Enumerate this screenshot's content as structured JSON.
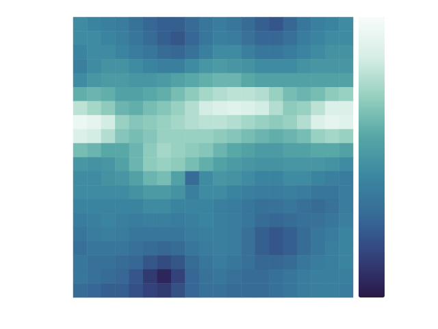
{
  "chart_data": {
    "type": "heatmap",
    "tick_labels": false,
    "clim": [
      0,
      1
    ],
    "cells": [
      [
        0.45,
        0.42,
        0.4,
        0.38,
        0.33,
        0.28,
        0.25,
        0.25,
        0.3,
        0.35,
        0.38,
        0.35,
        0.3,
        0.25,
        0.22,
        0.28,
        0.35,
        0.4,
        0.42,
        0.45
      ],
      [
        0.45,
        0.45,
        0.42,
        0.4,
        0.35,
        0.3,
        0.25,
        0.22,
        0.28,
        0.35,
        0.4,
        0.38,
        0.33,
        0.28,
        0.28,
        0.32,
        0.38,
        0.42,
        0.45,
        0.45
      ],
      [
        0.42,
        0.45,
        0.45,
        0.42,
        0.38,
        0.35,
        0.3,
        0.28,
        0.33,
        0.4,
        0.45,
        0.45,
        0.4,
        0.35,
        0.35,
        0.38,
        0.42,
        0.45,
        0.48,
        0.48
      ],
      [
        0.4,
        0.45,
        0.48,
        0.48,
        0.45,
        0.42,
        0.4,
        0.4,
        0.45,
        0.5,
        0.52,
        0.5,
        0.48,
        0.45,
        0.45,
        0.45,
        0.48,
        0.5,
        0.5,
        0.5
      ],
      [
        0.45,
        0.5,
        0.52,
        0.52,
        0.5,
        0.5,
        0.52,
        0.55,
        0.58,
        0.6,
        0.62,
        0.62,
        0.58,
        0.55,
        0.55,
        0.55,
        0.55,
        0.55,
        0.55,
        0.55
      ],
      [
        0.6,
        0.62,
        0.6,
        0.55,
        0.55,
        0.58,
        0.6,
        0.65,
        0.7,
        0.75,
        0.78,
        0.8,
        0.8,
        0.78,
        0.72,
        0.65,
        0.62,
        0.65,
        0.7,
        0.72
      ],
      [
        0.8,
        0.75,
        0.7,
        0.62,
        0.6,
        0.65,
        0.68,
        0.72,
        0.78,
        0.85,
        0.88,
        0.9,
        0.88,
        0.85,
        0.78,
        0.7,
        0.72,
        0.8,
        0.88,
        0.88
      ],
      [
        0.95,
        0.92,
        0.85,
        0.72,
        0.68,
        0.7,
        0.72,
        0.75,
        0.78,
        0.8,
        0.8,
        0.78,
        0.75,
        0.72,
        0.7,
        0.72,
        0.78,
        0.88,
        0.92,
        0.9
      ],
      [
        0.88,
        0.85,
        0.78,
        0.68,
        0.65,
        0.68,
        0.72,
        0.72,
        0.72,
        0.72,
        0.7,
        0.68,
        0.65,
        0.62,
        0.6,
        0.62,
        0.65,
        0.72,
        0.75,
        0.72
      ],
      [
        0.65,
        0.62,
        0.58,
        0.58,
        0.62,
        0.7,
        0.75,
        0.72,
        0.7,
        0.68,
        0.62,
        0.58,
        0.55,
        0.52,
        0.52,
        0.55,
        0.55,
        0.58,
        0.58,
        0.55
      ],
      [
        0.5,
        0.48,
        0.5,
        0.55,
        0.62,
        0.7,
        0.72,
        0.7,
        0.65,
        0.6,
        0.55,
        0.52,
        0.5,
        0.48,
        0.48,
        0.5,
        0.5,
        0.5,
        0.48,
        0.45
      ],
      [
        0.45,
        0.45,
        0.48,
        0.5,
        0.55,
        0.62,
        0.65,
        0.55,
        0.3,
        0.45,
        0.5,
        0.48,
        0.45,
        0.42,
        0.42,
        0.45,
        0.45,
        0.42,
        0.4,
        0.38
      ],
      [
        0.45,
        0.45,
        0.45,
        0.45,
        0.48,
        0.52,
        0.52,
        0.48,
        0.4,
        0.45,
        0.45,
        0.42,
        0.4,
        0.38,
        0.38,
        0.4,
        0.38,
        0.35,
        0.35,
        0.38
      ],
      [
        0.42,
        0.42,
        0.42,
        0.42,
        0.42,
        0.45,
        0.45,
        0.42,
        0.42,
        0.42,
        0.4,
        0.38,
        0.35,
        0.32,
        0.33,
        0.35,
        0.32,
        0.3,
        0.33,
        0.38
      ],
      [
        0.38,
        0.4,
        0.42,
        0.4,
        0.38,
        0.4,
        0.4,
        0.38,
        0.4,
        0.42,
        0.4,
        0.38,
        0.35,
        0.3,
        0.28,
        0.3,
        0.32,
        0.33,
        0.35,
        0.4
      ],
      [
        0.35,
        0.38,
        0.4,
        0.38,
        0.35,
        0.35,
        0.35,
        0.35,
        0.38,
        0.4,
        0.4,
        0.38,
        0.32,
        0.25,
        0.22,
        0.25,
        0.3,
        0.35,
        0.38,
        0.42
      ],
      [
        0.32,
        0.35,
        0.35,
        0.35,
        0.32,
        0.3,
        0.28,
        0.3,
        0.35,
        0.38,
        0.4,
        0.38,
        0.32,
        0.25,
        0.22,
        0.25,
        0.3,
        0.35,
        0.4,
        0.42
      ],
      [
        0.35,
        0.32,
        0.32,
        0.3,
        0.28,
        0.22,
        0.18,
        0.22,
        0.3,
        0.35,
        0.38,
        0.35,
        0.32,
        0.28,
        0.28,
        0.3,
        0.35,
        0.38,
        0.4,
        0.42
      ],
      [
        0.35,
        0.32,
        0.3,
        0.28,
        0.22,
        0.12,
        0.05,
        0.15,
        0.28,
        0.33,
        0.35,
        0.32,
        0.3,
        0.3,
        0.32,
        0.35,
        0.38,
        0.4,
        0.4,
        0.4
      ],
      [
        0.3,
        0.28,
        0.25,
        0.25,
        0.2,
        0.15,
        0.12,
        0.2,
        0.28,
        0.32,
        0.32,
        0.3,
        0.3,
        0.3,
        0.32,
        0.35,
        0.38,
        0.4,
        0.4,
        0.38
      ]
    ]
  }
}
